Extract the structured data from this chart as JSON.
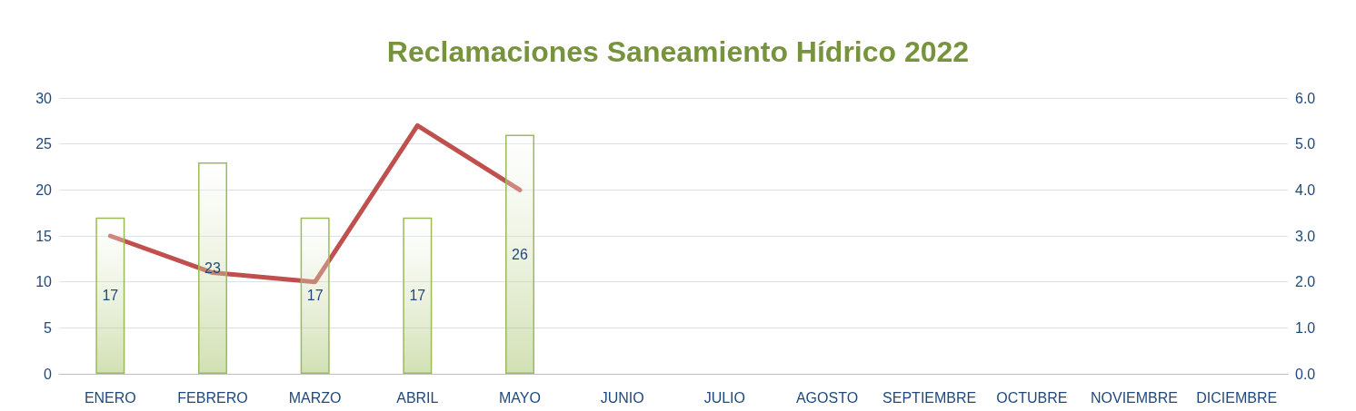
{
  "chart_data": {
    "type": "bar",
    "title": "Reclamaciones Saneamiento Hídrico 2022",
    "categories": [
      "ENERO",
      "FEBRERO",
      "MARZO",
      "ABRIL",
      "MAYO",
      "JUNIO",
      "JULIO",
      "AGOSTO",
      "SEPTIEMBRE",
      "OCTUBRE",
      "NOVIEMBRE",
      "DICIEMBRE"
    ],
    "series": [
      {
        "color": "#9bbb59",
        "values": [
          17,
          23,
          17,
          17,
          26,
          null,
          null,
          null,
          null,
          null,
          null,
          null
        ],
        "value_labels": [
          "17",
          "23",
          "17",
          "17",
          "26",
          null,
          null,
          null,
          null,
          null,
          null,
          null
        ]
      },
      {
        "type": "line",
        "axis": "y2",
        "color": "#c0504d",
        "values": [
          3.0,
          2.2,
          2.0,
          5.4,
          4.0,
          null,
          null,
          null,
          null,
          null,
          null,
          null
        ]
      }
    ],
    "ylim": [
      0,
      30
    ],
    "yticks": [
      0,
      5,
      10,
      15,
      20,
      25,
      30
    ],
    "y2lim": [
      0,
      6
    ],
    "y2ticks": [
      {
        "value": 0,
        "label": "0.0"
      },
      {
        "value": 1,
        "label": "1.0"
      },
      {
        "value": 2,
        "label": "2.0"
      },
      {
        "value": 3,
        "label": "3.0"
      },
      {
        "value": 4,
        "label": "4.0"
      },
      {
        "value": 5,
        "label": "5.0"
      },
      {
        "value": 6,
        "label": "6.0"
      }
    ],
    "grid": "y",
    "marker": "none",
    "line_style": "solid"
  }
}
